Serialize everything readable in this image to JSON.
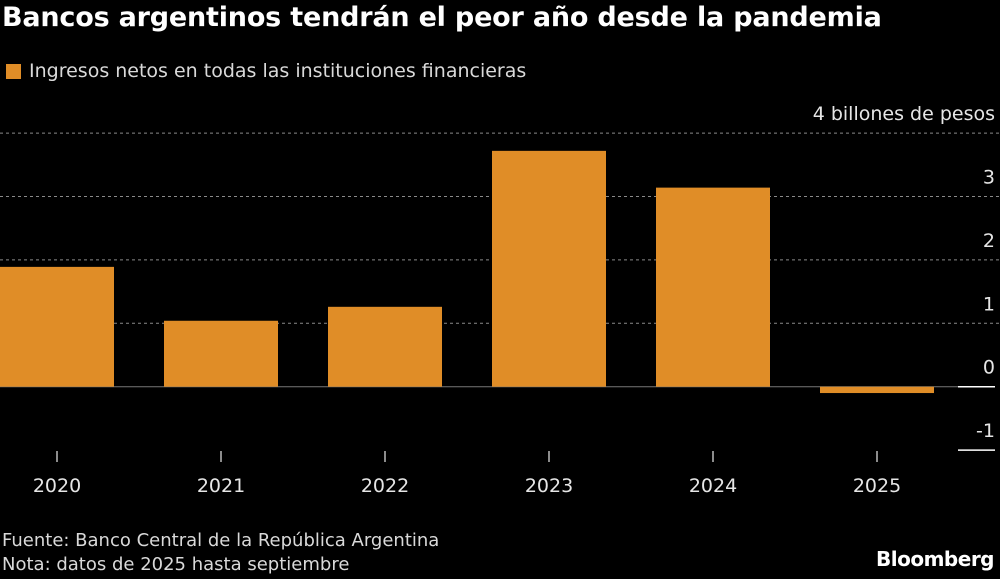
{
  "chart_data": {
    "type": "bar",
    "title": "Bancos argentinos tendrán el peor año desde la pandemia",
    "categories": [
      "2020",
      "2021",
      "2022",
      "2023",
      "2024",
      "2025"
    ],
    "series": [
      {
        "name": "Ingresos netos en todas las instituciones financieras",
        "values": [
          1.89,
          1.04,
          1.26,
          3.72,
          3.14,
          -0.1
        ],
        "color": "#e08d27"
      }
    ],
    "ylabel": "billones de pesos",
    "y_ticks": [
      {
        "value": 4,
        "label": "4 billones de pesos"
      },
      {
        "value": 3,
        "label": "3"
      },
      {
        "value": 2,
        "label": "2"
      },
      {
        "value": 1,
        "label": "1"
      },
      {
        "value": 0,
        "label": "0"
      },
      {
        "value": -1,
        "label": "-1"
      }
    ],
    "ylim": [
      -1,
      4
    ],
    "grid": true,
    "y_axis_side": "right",
    "legend_placement": "top-left"
  },
  "footer": {
    "source": "Fuente: Banco Central de la República Argentina",
    "note": "Nota: datos de 2025 hasta septiembre",
    "logo": "Bloomberg"
  }
}
